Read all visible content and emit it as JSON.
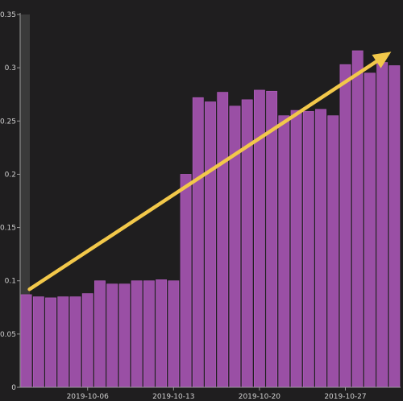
{
  "chart_data": {
    "type": "bar",
    "title": "",
    "xlabel": "",
    "ylabel": "",
    "x_dates": [
      "2019-10-01",
      "2019-10-02",
      "2019-10-03",
      "2019-10-04",
      "2019-10-05",
      "2019-10-06",
      "2019-10-07",
      "2019-10-08",
      "2019-10-09",
      "2019-10-10",
      "2019-10-11",
      "2019-10-12",
      "2019-10-13",
      "2019-10-14",
      "2019-10-15",
      "2019-10-16",
      "2019-10-17",
      "2019-10-18",
      "2019-10-19",
      "2019-10-20",
      "2019-10-21",
      "2019-10-22",
      "2019-10-23",
      "2019-10-24",
      "2019-10-25",
      "2019-10-26",
      "2019-10-27",
      "2019-10-28",
      "2019-10-29",
      "2019-10-30",
      "2019-10-31"
    ],
    "values": [
      0.087,
      0.085,
      0.084,
      0.085,
      0.085,
      0.088,
      0.1,
      0.097,
      0.097,
      0.1,
      0.1,
      0.101,
      0.1,
      0.2,
      0.272,
      0.268,
      0.277,
      0.264,
      0.27,
      0.279,
      0.278,
      0.255,
      0.26,
      0.259,
      0.261,
      0.255,
      0.303,
      0.316,
      0.295,
      0.305,
      0.302
    ],
    "ylim": [
      0,
      0.35
    ],
    "y_ticks": [
      "0",
      "0.05",
      "0.1",
      "0.15",
      "0.2",
      "0.25",
      "0.3",
      "0.35"
    ],
    "x_tick_labels": [
      "2019-10-06",
      "2019-10-13",
      "2019-10-20",
      "2019-10-27"
    ],
    "trend_arrow": {
      "from": {
        "x": "2019-10-01",
        "y": 0.092
      },
      "to": {
        "x": "2019-10-31",
        "y": 0.315
      }
    },
    "grid": false,
    "colors": {
      "background": "#1f1e1f",
      "bar": "#9a4fa5",
      "bar_edge": "#b45fc0",
      "arrow": "#f2c84a",
      "axis": "#9a9a9a",
      "text": "#cfcfcf",
      "left_band": "#3a3a3a"
    }
  }
}
